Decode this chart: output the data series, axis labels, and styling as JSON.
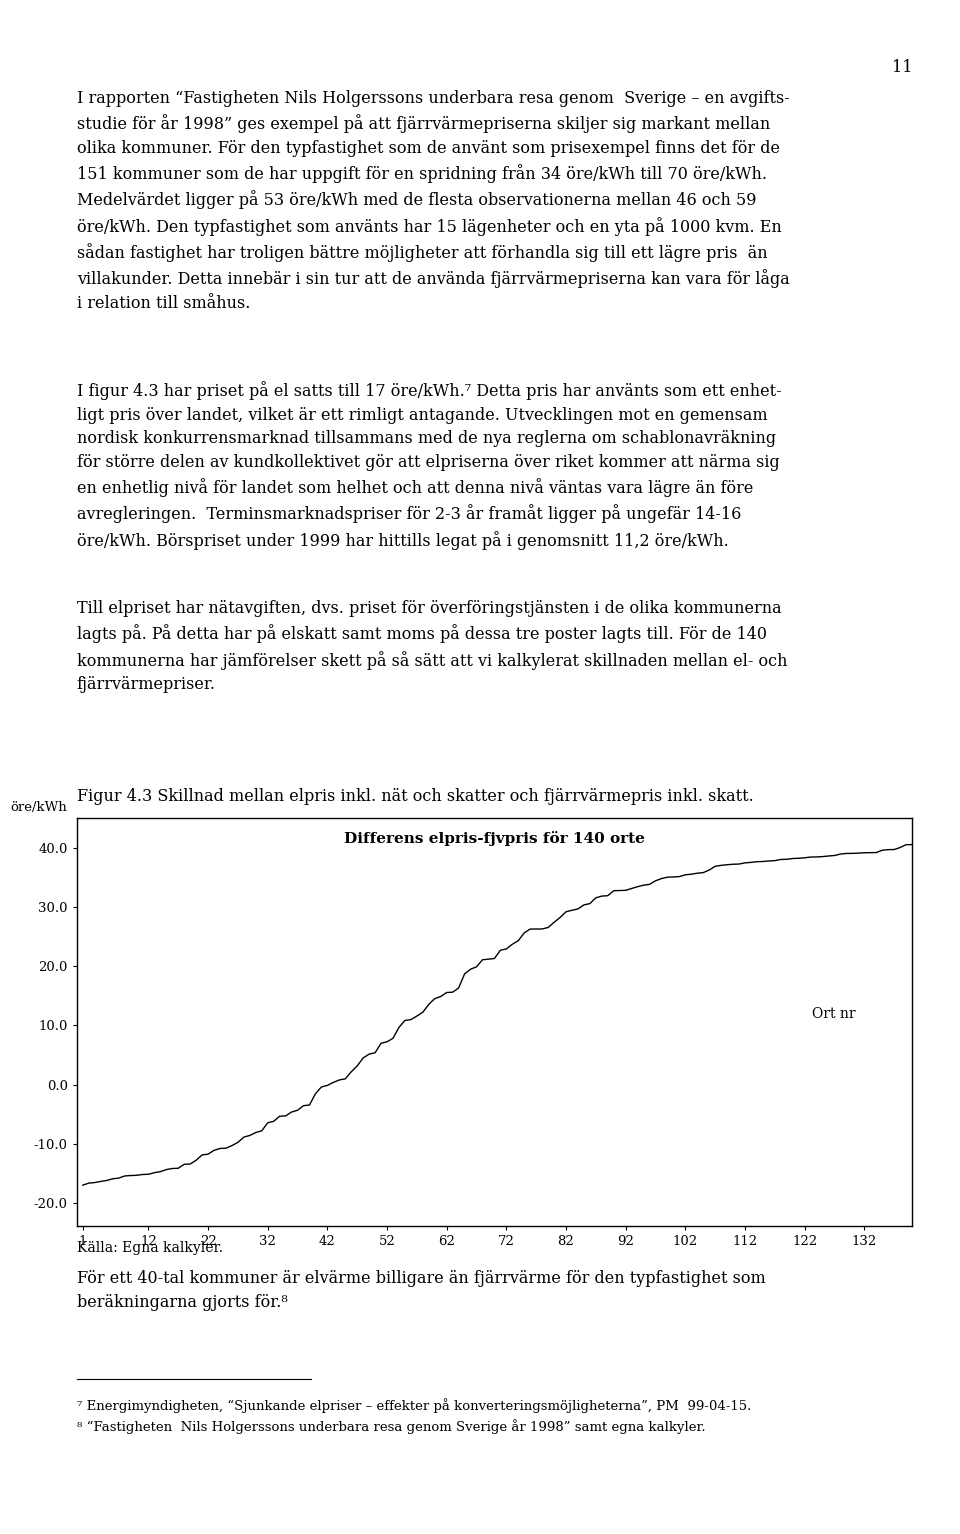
{
  "page_number": "11",
  "background_color": "#ffffff",
  "text_color": "#000000",
  "fig_caption": "Figur 4.3 Skillnad mellan elpris inkl. nät och skatter och fjärrvärmepris inkl. skatt.",
  "chart_title": "Differens elpris-fjvpris för 140 orte",
  "chart_ylabel": "öre/kWh",
  "chart_xlabel_label": "Ort nr",
  "chart_xticks": [
    1,
    12,
    22,
    32,
    42,
    52,
    62,
    72,
    82,
    92,
    102,
    112,
    122,
    132
  ],
  "chart_yticks": [
    -20.0,
    -10.0,
    0.0,
    10.0,
    20.0,
    30.0,
    40.0
  ],
  "chart_ylim": [
    -24,
    45
  ],
  "chart_xlim": [
    0,
    140
  ],
  "source_text": "Källa: Egna kalkyler.",
  "footnote7": "⁷ Energimyndigheten, “Sjunkande elpriser – effekter på konverteringsmöjligheterna”, PM  99-04-15.",
  "footnote8": "⁸ “Fastigheten  Nils Holgerssons underbara resa genom Sverige år 1998” samt egna kalkyler.",
  "text_font_size": 11.5,
  "caption_font_size": 11.5,
  "footnote_font_size": 9.5
}
